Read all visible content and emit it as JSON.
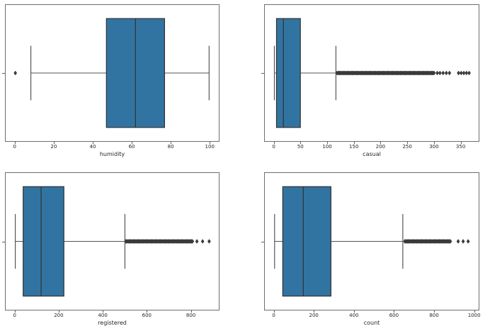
{
  "figure": {
    "background": "#ffffff",
    "box_fill": "#3274a1",
    "box_edge": "#303030",
    "whisker_color": "#555555",
    "flier_color": "#3a3a3a",
    "spine_color": "#6e6e6e",
    "tick_text_color": "#262626",
    "flier_marker": "thin-diamond"
  },
  "chart_data": [
    {
      "type": "box",
      "orientation": "horizontal",
      "xlabel": "humidity",
      "xlim": [
        -5,
        105
      ],
      "xticks": [
        0,
        20,
        40,
        60,
        80,
        100
      ],
      "grid": false,
      "stats": {
        "whisker_low": 8,
        "q1": 47,
        "median": 62,
        "q3": 77,
        "whisker_high": 100
      },
      "outlier_band": null,
      "outliers": [
        0
      ]
    },
    {
      "type": "box",
      "orientation": "horizontal",
      "xlabel": "casual",
      "xlim": [
        -18,
        385
      ],
      "xticks": [
        0,
        50,
        100,
        150,
        200,
        250,
        300,
        350
      ],
      "grid": false,
      "stats": {
        "whisker_low": 0,
        "q1": 4,
        "median": 17,
        "q3": 49,
        "whisker_high": 116
      },
      "outlier_band": [
        118,
        302
      ],
      "outliers": [
        307,
        312,
        318,
        324,
        330,
        347,
        352,
        357,
        362,
        367
      ]
    },
    {
      "type": "box",
      "orientation": "horizontal",
      "xlabel": "registered",
      "xlim": [
        -44,
        930
      ],
      "xticks": [
        0,
        200,
        400,
        600,
        800
      ],
      "grid": false,
      "stats": {
        "whisker_low": 0,
        "q1": 36,
        "median": 118,
        "q3": 222,
        "whisker_high": 501
      },
      "outlier_band": [
        505,
        812
      ],
      "outliers": [
        830,
        856,
        886
      ]
    },
    {
      "type": "box",
      "orientation": "horizontal",
      "xlabel": "count",
      "xlim": [
        -48,
        1026
      ],
      "xticks": [
        0,
        200,
        400,
        600,
        800,
        1000
      ],
      "grid": false,
      "stats": {
        "whisker_low": 1,
        "q1": 42,
        "median": 145,
        "q3": 284,
        "whisker_high": 645
      },
      "outlier_band": [
        655,
        885
      ],
      "outliers": [
        923,
        948,
        973
      ]
    }
  ]
}
